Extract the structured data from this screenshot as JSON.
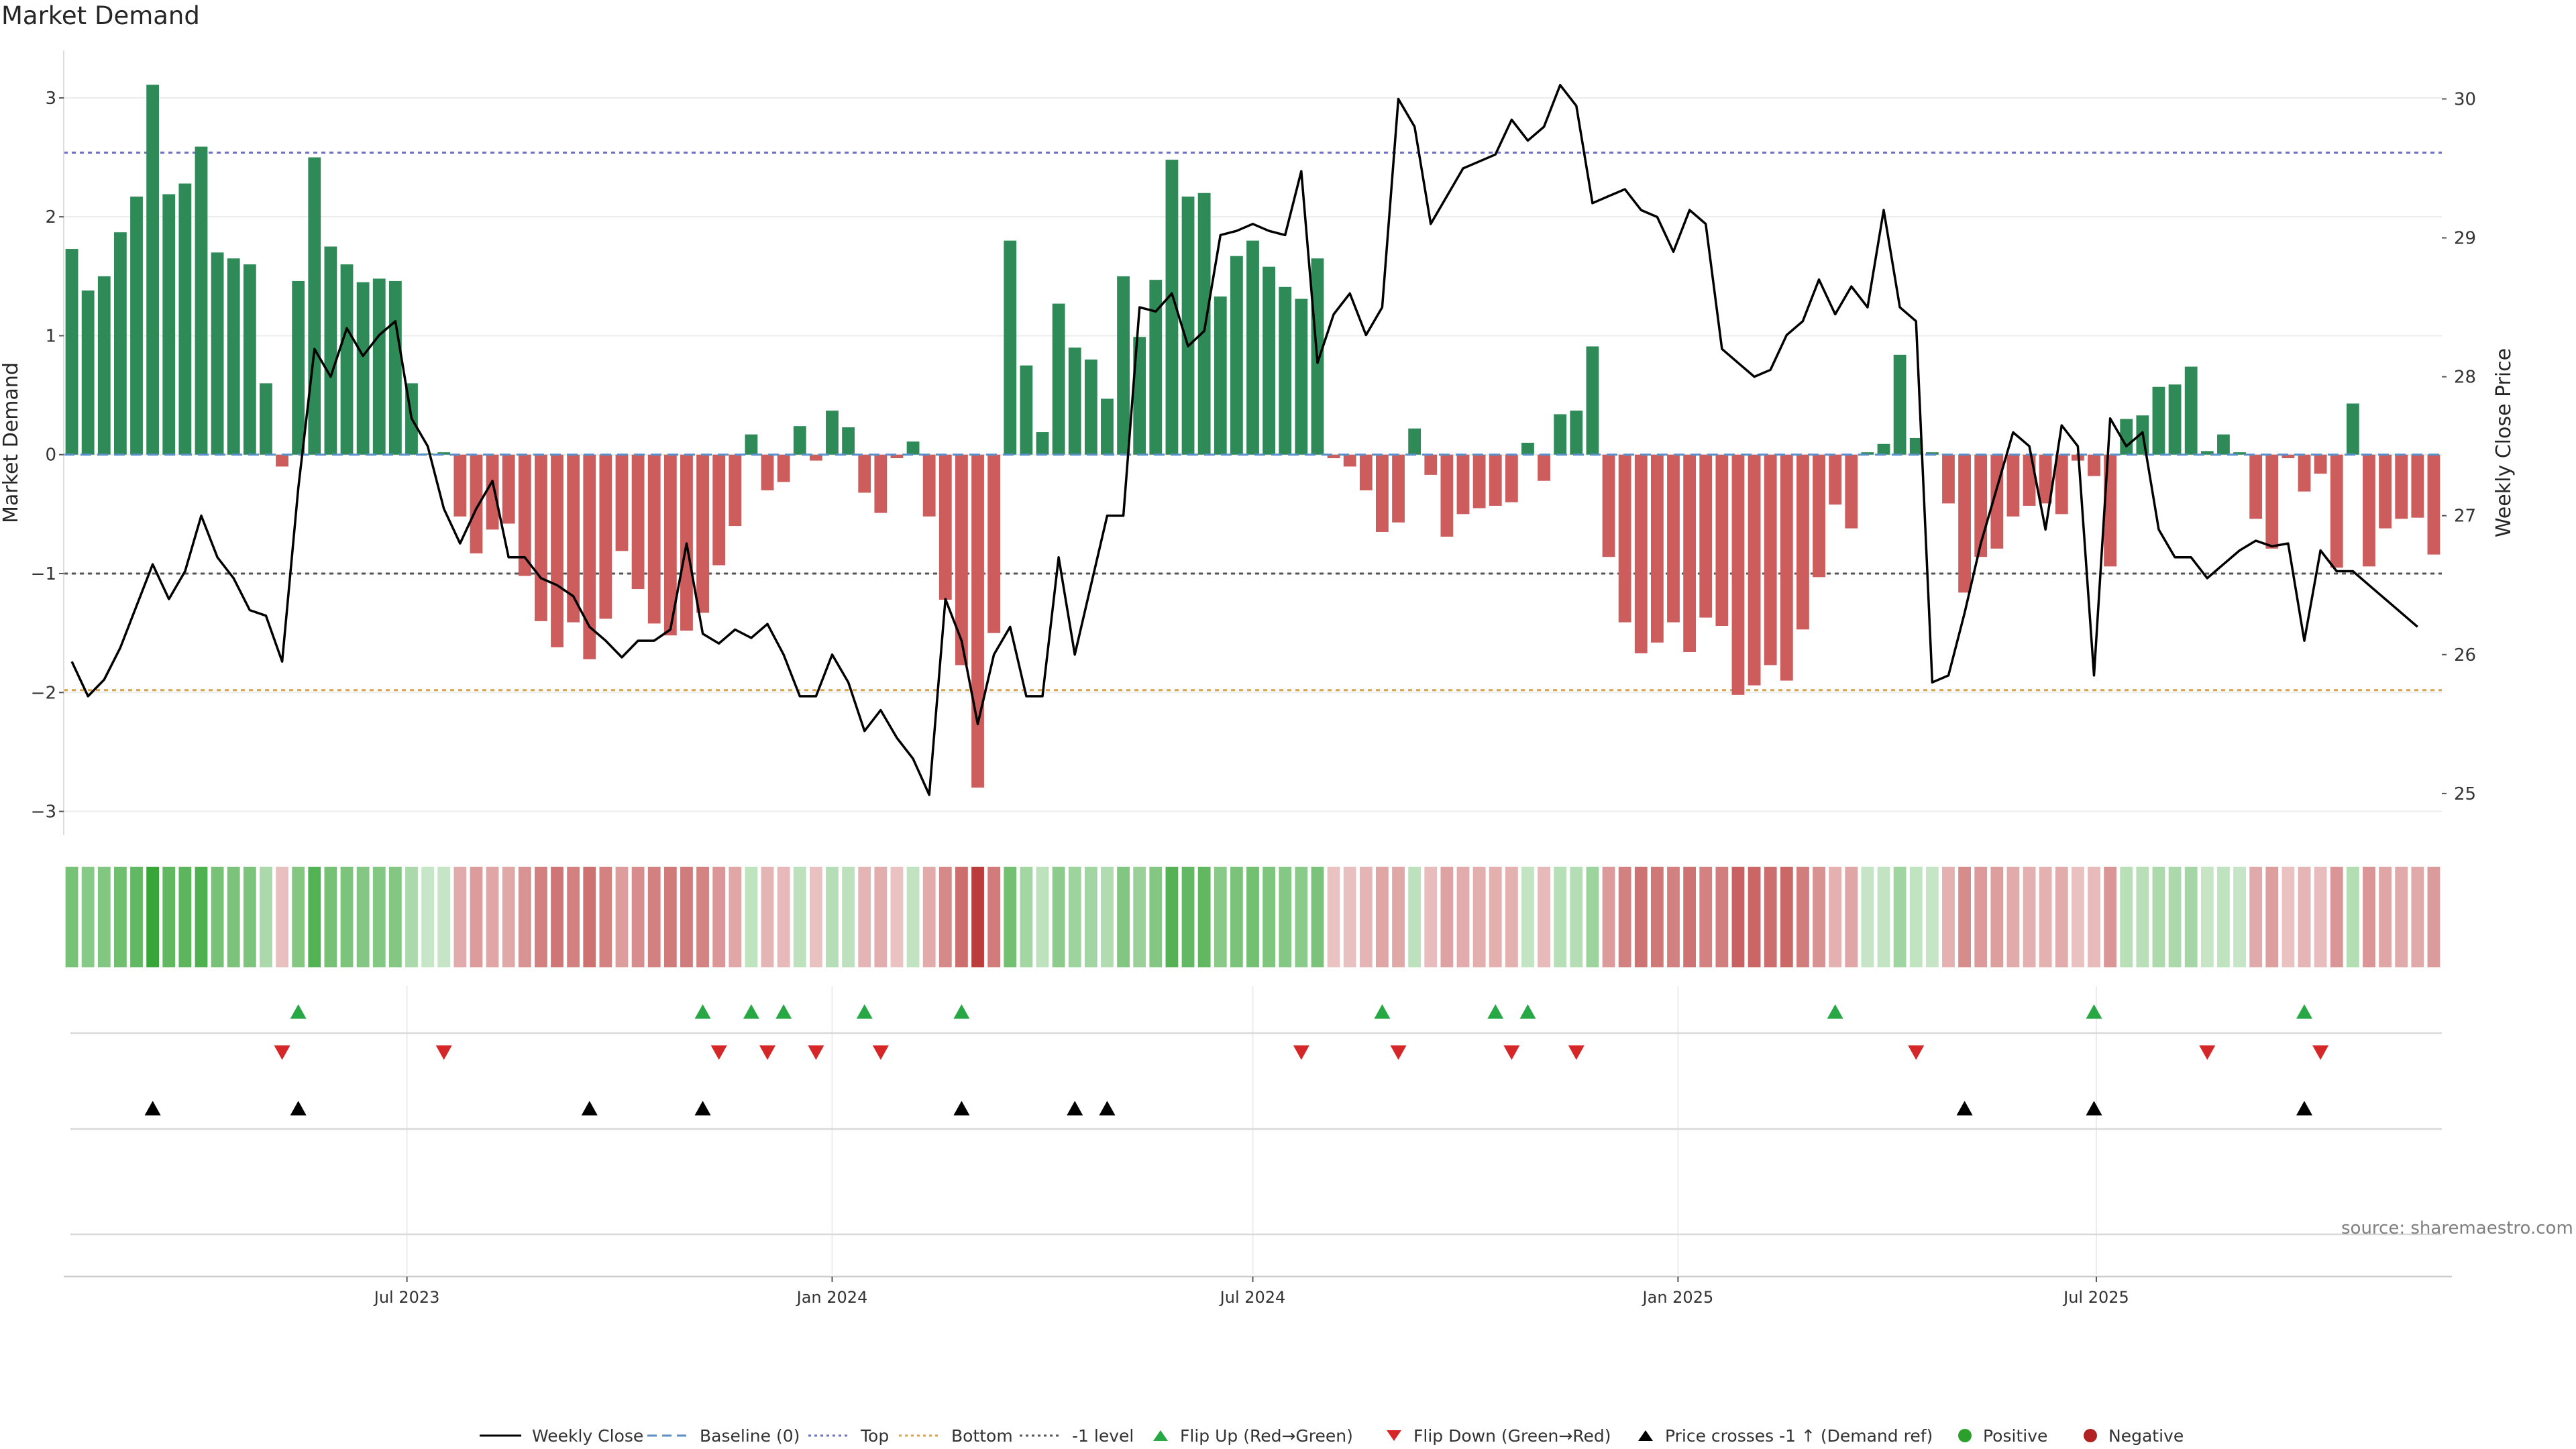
{
  "chart_data": {
    "type": "bar",
    "title": "Market Demand",
    "ylabel": "Market Demand",
    "y2label": "Weekly Close Price",
    "ylim": [
      -3.2,
      3.4
    ],
    "y2lim": [
      24.7,
      30.35
    ],
    "yticks": [
      -3,
      -2,
      -1,
      0,
      1,
      2,
      3
    ],
    "y2ticks": [
      25,
      26,
      27,
      28,
      29,
      30
    ],
    "x_start": "2023-02-06",
    "x_end": "2025-10-27",
    "xticks": [
      {
        "date": "2023-07-01",
        "label": "Jul 2023"
      },
      {
        "date": "2024-01-01",
        "label": "Jan 2024"
      },
      {
        "date": "2024-07-01",
        "label": "Jul 2024"
      },
      {
        "date": "2025-01-01",
        "label": "Jan 2025"
      },
      {
        "date": "2025-07-01",
        "label": "Jul 2025"
      }
    ],
    "reference_lines": [
      {
        "name": "Top",
        "value": 2.54,
        "color": "#6b6fc7"
      },
      {
        "name": "Bottom",
        "value": -1.98,
        "color": "#d8a348"
      },
      {
        "name": "-1 level",
        "value": -1.0,
        "color": "#555555"
      }
    ],
    "demand": [
      1.73,
      1.38,
      1.5,
      1.87,
      2.17,
      3.11,
      2.19,
      2.28,
      2.59,
      1.7,
      1.65,
      1.6,
      0.6,
      -0.1,
      1.46,
      2.5,
      1.75,
      1.6,
      1.45,
      1.48,
      1.46,
      0.6,
      0.01,
      0.02,
      -0.52,
      -0.83,
      -0.63,
      -0.58,
      -1.02,
      -1.4,
      -1.62,
      -1.41,
      -1.72,
      -1.38,
      -0.81,
      -1.13,
      -1.42,
      -1.52,
      -1.48,
      -1.33,
      -0.93,
      -0.6,
      0.17,
      -0.3,
      -0.23,
      0.24,
      -0.05,
      0.37,
      0.23,
      -0.32,
      -0.49,
      -0.03,
      0.11,
      -0.52,
      -1.22,
      -1.77,
      -2.8,
      -1.5,
      1.8,
      0.75,
      0.19,
      1.27,
      0.9,
      0.8,
      0.47,
      1.5,
      0.99,
      1.47,
      2.48,
      2.17,
      2.2,
      1.33,
      1.67,
      1.8,
      1.58,
      1.41,
      1.31,
      1.65,
      -0.03,
      -0.1,
      -0.3,
      -0.65,
      -0.57,
      0.22,
      -0.17,
      -0.69,
      -0.5,
      -0.45,
      -0.43,
      -0.4,
      0.1,
      -0.22,
      0.34,
      0.37,
      0.91,
      -0.86,
      -1.41,
      -1.67,
      -1.58,
      -1.41,
      -1.66,
      -1.37,
      -1.44,
      -2.02,
      -1.94,
      -1.77,
      -1.9,
      -1.47,
      -1.03,
      -0.42,
      -0.62,
      0.02,
      0.09,
      0.84,
      0.14,
      0.02,
      -0.41,
      -1.16,
      -0.86,
      -0.79,
      -0.52,
      -0.43,
      -0.41,
      -0.5,
      -0.05,
      -0.18,
      -0.94,
      0.3,
      0.33,
      0.57,
      0.59,
      0.74,
      0.03,
      0.17,
      0.02,
      -0.54,
      -0.79,
      -0.03,
      -0.31,
      -0.16,
      -0.95,
      0.43,
      -0.94,
      -0.62,
      -0.54,
      -0.53,
      -0.84
    ],
    "weekly_close": [
      25.95,
      25.7,
      25.82,
      26.05,
      26.35,
      26.65,
      26.4,
      26.6,
      27.0,
      26.7,
      26.55,
      26.32,
      26.28,
      25.95,
      27.2,
      28.2,
      28.0,
      28.35,
      28.15,
      28.3,
      28.4,
      27.7,
      27.5,
      27.05,
      26.8,
      27.05,
      27.25,
      26.7,
      26.7,
      26.55,
      26.5,
      26.42,
      26.2,
      26.1,
      25.98,
      26.1,
      26.1,
      26.18,
      26.8,
      26.15,
      26.08,
      26.18,
      26.12,
      26.22,
      26.0,
      25.7,
      25.7,
      26.0,
      25.8,
      25.45,
      25.6,
      25.4,
      25.25,
      24.99,
      26.4,
      26.1,
      25.5,
      26.0,
      26.2,
      25.7,
      25.7,
      26.7,
      26.0,
      26.5,
      27.0,
      27.0,
      28.5,
      28.47,
      28.6,
      28.22,
      28.33,
      29.02,
      29.05,
      29.1,
      29.05,
      29.02,
      29.48,
      28.1,
      28.45,
      28.6,
      28.3,
      28.5,
      30.0,
      29.8,
      29.1,
      29.3,
      29.5,
      29.55,
      29.6,
      29.85,
      29.7,
      29.8,
      30.1,
      29.95,
      29.25,
      29.3,
      29.35,
      29.2,
      29.15,
      28.9,
      29.2,
      29.1,
      28.2,
      28.1,
      28.0,
      28.05,
      28.3,
      28.4,
      28.7,
      28.45,
      28.65,
      28.5,
      29.2,
      28.5,
      28.4,
      25.8,
      25.85,
      26.3,
      26.8,
      27.2,
      27.6,
      27.5,
      26.9,
      27.65,
      27.5,
      25.85,
      27.7,
      27.5,
      27.6,
      26.9,
      26.7,
      26.7,
      26.55,
      26.65,
      26.75,
      26.82,
      26.78,
      26.8,
      26.1,
      26.75,
      26.6,
      26.6,
      26.5,
      26.4,
      26.3,
      26.2
    ],
    "flip_up_weeks": [
      14,
      39,
      42,
      44,
      49,
      55,
      81,
      88,
      90,
      109,
      125,
      138
    ],
    "flip_down_weeks": [
      13,
      23,
      40,
      43,
      46,
      50,
      76,
      82,
      89,
      93,
      114,
      132,
      139
    ],
    "price_cross_weeks": [
      5,
      14,
      32,
      39,
      55,
      62,
      64,
      117,
      125,
      138
    ],
    "source": "source: sharemaestro.com",
    "colors": {
      "positive": "#2e8b57",
      "negative": "#cd5c5c",
      "price": "#000000",
      "baseline": "#5b8fc7",
      "flip_up": "#28a745",
      "flip_down": "#d62728",
      "cross": "#000000",
      "legend_positive": "#2ca02c",
      "legend_negative": "#b22222"
    },
    "legend": [
      {
        "label": "Weekly Close"
      },
      {
        "label": "Baseline (0)"
      },
      {
        "label": "Top"
      },
      {
        "label": "Bottom"
      },
      {
        "label": "-1 level"
      },
      {
        "label": "Flip Up (Red→Green)"
      },
      {
        "label": "Flip Down (Green→Red)"
      },
      {
        "label": "Price crosses -1 ↑ (Demand ref)"
      },
      {
        "label": "Positive"
      },
      {
        "label": "Negative"
      }
    ],
    "legend_placement": "bottom-center",
    "grid": true
  }
}
